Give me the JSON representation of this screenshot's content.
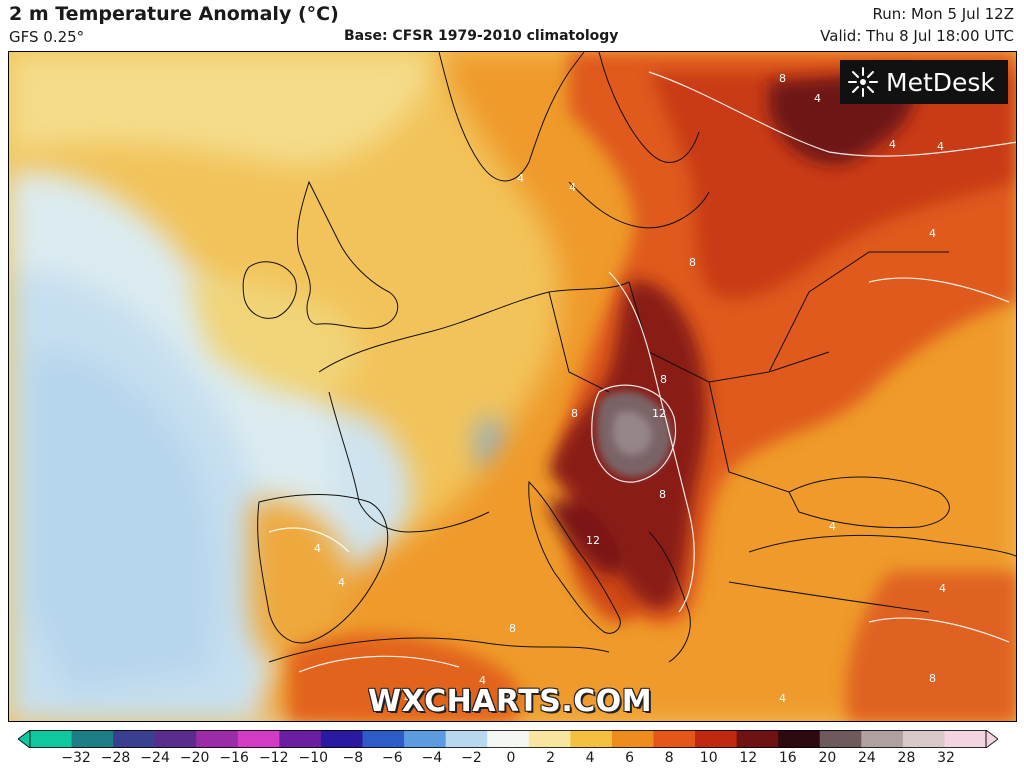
{
  "header": {
    "title": "2 m Temperature Anomaly (°C)",
    "subtitle": "GFS 0.25°",
    "base": "Base: CFSR 1979-2010 climatology",
    "run": "Run: Mon 5 Jul 12Z",
    "valid": "Valid: Thu 8 Jul 18:00 UTC"
  },
  "logo": {
    "text": "MetDesk",
    "icon": "metdesk-burst-icon"
  },
  "watermark": {
    "text": "WXCHARTS.COM"
  },
  "contour_labels": [
    "4",
    "8",
    "12"
  ],
  "colorbar": {
    "ticks": [
      "−32",
      "−28",
      "−24",
      "−20",
      "−16",
      "−12",
      "−10",
      "−8",
      "−6",
      "−4",
      "−2",
      "0",
      "2",
      "4",
      "6",
      "8",
      "10",
      "12",
      "16",
      "20",
      "24",
      "28",
      "32"
    ],
    "colors": [
      "#10c8a0",
      "#1e7e86",
      "#3a3f8f",
      "#5a2c8c",
      "#9a2ca8",
      "#d23cc2",
      "#6a1ea0",
      "#2a1aa0",
      "#2d5bc8",
      "#5c9be0",
      "#b8d8ee",
      "#f4f6f2",
      "#f8e6a0",
      "#f4c040",
      "#ef8c1e",
      "#e4561a",
      "#c02810",
      "#6e1214",
      "#2c0a10",
      "#6e5a5c",
      "#b0a0a0",
      "#d8c8c8",
      "#f4d4e0"
    ]
  }
}
